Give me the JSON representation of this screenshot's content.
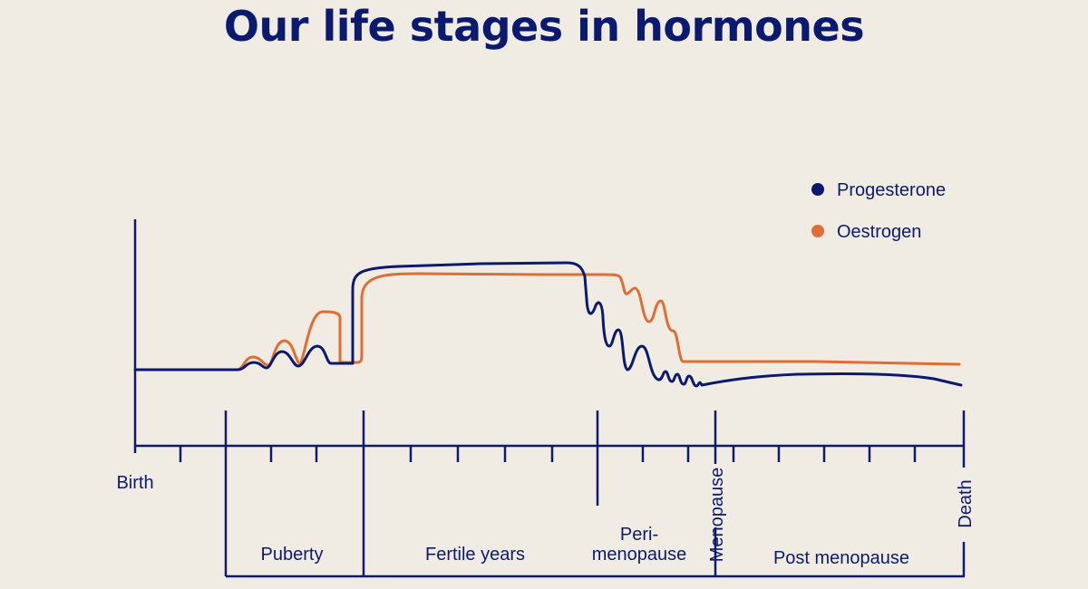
{
  "title": "Our life stages in hormones",
  "colors": {
    "background": "#f1ece3",
    "progesterone": "#0b1a6e",
    "oestrogen": "#e06d33",
    "axis": "#0b1a6e"
  },
  "legend": [
    {
      "name": "Progesterone",
      "color": "#0b1a6e"
    },
    {
      "name": "Oestrogen",
      "color": "#e06d33"
    }
  ],
  "axis": {
    "start": "Birth",
    "menopause": "Menopause",
    "end": "Death"
  },
  "stages": {
    "puberty": "Puberty",
    "fertile": "Fertile years",
    "peri_line1": "Peri-",
    "peri_line2": "menopause",
    "post": "Post menopause"
  }
}
